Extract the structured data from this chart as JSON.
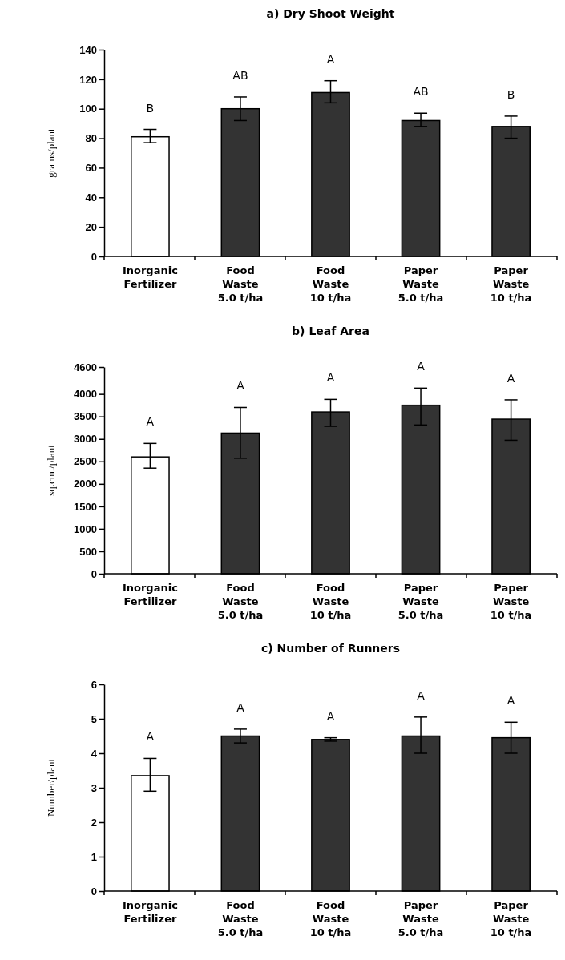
{
  "chart_data": [
    {
      "type": "bar",
      "title": "a) Dry Shoot Weight",
      "ylabel": "grams/plant",
      "categories": [
        "Inorganic\nFertilizer",
        "Food\nWaste\n5.0 t/ha",
        "Food\nWaste\n10 t/ha",
        "Paper\nWaste\n5.0 t/ha",
        "Paper\nWaste\n10 t/ha"
      ],
      "values": [
        81,
        100,
        111,
        92,
        88
      ],
      "errors": [
        [
          77,
          86
        ],
        [
          92,
          108
        ],
        [
          104,
          119
        ],
        [
          88,
          97
        ],
        [
          80,
          95
        ]
      ],
      "colors": [
        "#ffffff",
        "#333333",
        "#333333",
        "#333333",
        "#333333"
      ],
      "ylim": [
        0,
        140
      ],
      "yticks": [
        0,
        20,
        40,
        60,
        80,
        100,
        120,
        140
      ],
      "grid": false,
      "annotations": [
        "B",
        "AB",
        "A",
        "AB",
        "B"
      ]
    },
    {
      "type": "bar",
      "title": "b) Leaf Area",
      "ylabel": "sq.cm./plant",
      "categories": [
        "Inorganic\nFertilizer",
        "Food\nWaste\n5.0 t/ha",
        "Food\nWaste\n10 t/ha",
        "Paper\nWaste\n5.0 t/ha",
        "Paper\nWaste\n10 t/ha"
      ],
      "values": [
        2600,
        3130,
        3600,
        3750,
        3440
      ],
      "errors": [
        [
          2350,
          2900
        ],
        [
          2570,
          3700
        ],
        [
          3280,
          3880
        ],
        [
          3310,
          4130
        ],
        [
          2970,
          3870
        ]
      ],
      "colors": [
        "#ffffff",
        "#333333",
        "#333333",
        "#333333",
        "#333333"
      ],
      "ylim": [
        0,
        4600
      ],
      "yticks": [
        0,
        500,
        1000,
        1500,
        2000,
        2500,
        3000,
        3500,
        4000,
        4600
      ],
      "grid": false,
      "annotations": [
        "A",
        "A",
        "A",
        "A",
        "A"
      ]
    },
    {
      "type": "bar",
      "title": "c) Number of Runners",
      "ylabel": "Number/plant",
      "categories": [
        "Inorganic\nFertilizer",
        "Food\nWaste\n5.0 t/ha",
        "Food\nWaste\n10 t/ha",
        "Paper\nWaste\n5.0 t/ha",
        "Paper\nWaste\n10 t/ha"
      ],
      "values": [
        3.35,
        4.5,
        4.4,
        4.5,
        4.45
      ],
      "errors": [
        [
          2.9,
          3.85
        ],
        [
          4.3,
          4.7
        ],
        [
          4.35,
          4.45
        ],
        [
          4.0,
          5.05
        ],
        [
          4.0,
          4.9
        ]
      ],
      "colors": [
        "#ffffff",
        "#333333",
        "#333333",
        "#333333",
        "#333333"
      ],
      "ylim": [
        0,
        6
      ],
      "yticks": [
        0,
        1,
        2,
        3,
        4,
        5,
        6
      ],
      "grid": false,
      "annotations": [
        "A",
        "A",
        "A",
        "A",
        "A"
      ]
    }
  ]
}
